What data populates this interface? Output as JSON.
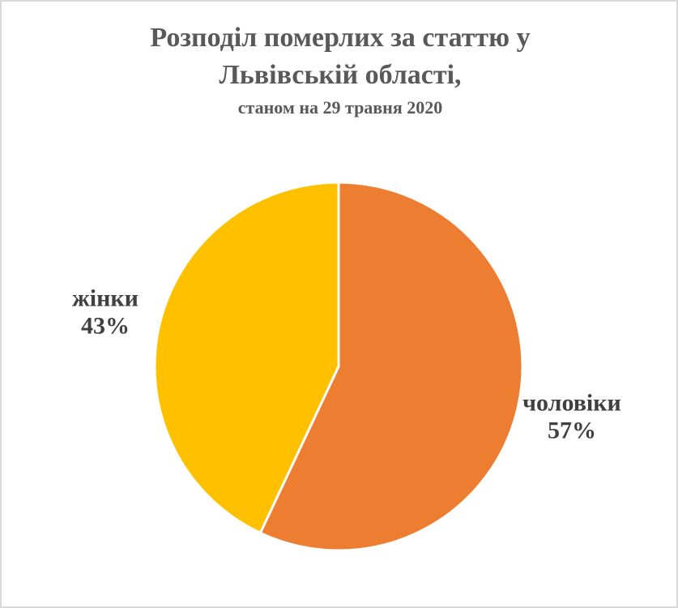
{
  "chart_data": {
    "type": "pie",
    "title": "Розподіл померлих за статтю у Львівській області,",
    "subtitle": "станом на 29 травня 2020",
    "categories": [
      "чоловіки",
      "жінки"
    ],
    "values": [
      57,
      43
    ],
    "value_labels": [
      "57%",
      "43%"
    ],
    "colors": [
      "#ED7D31",
      "#FFC000"
    ]
  }
}
